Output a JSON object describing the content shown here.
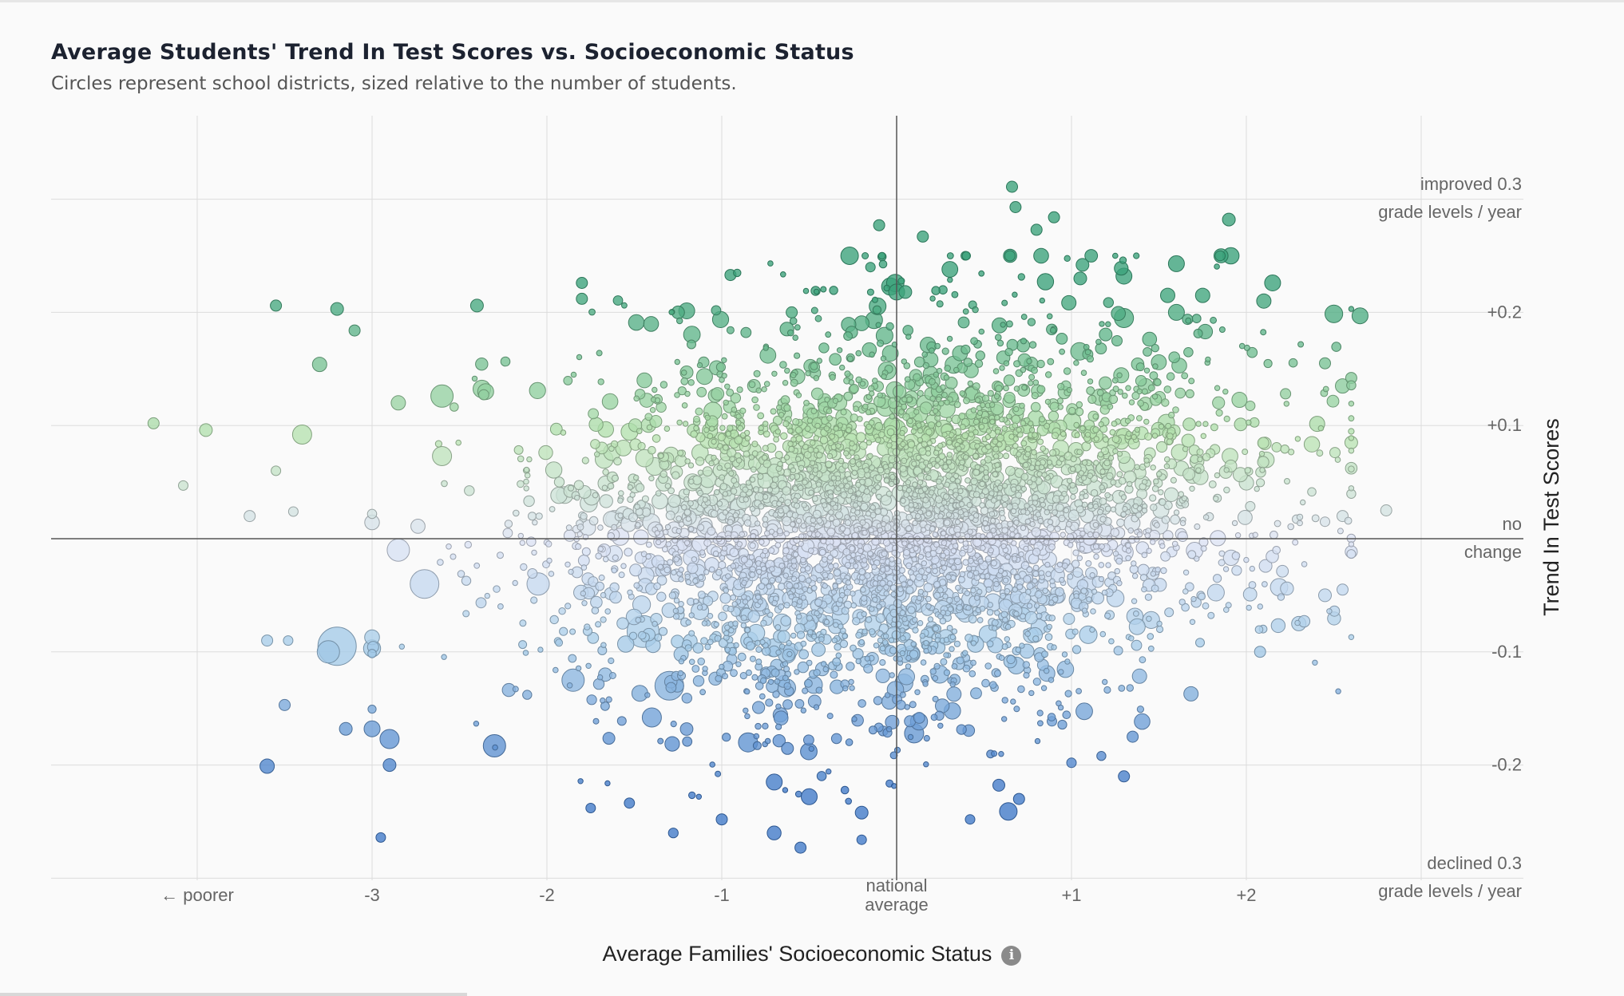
{
  "title": "Average Students' Trend In Test Scores vs. Socioeconomic Status",
  "subtitle": "Circles represent school districts, sized relative to the number of students.",
  "x_axis_label": "Average Families' Socioeconomic Status",
  "y_axis_label": "Trend In Test Scores",
  "info_icon": "info-icon",
  "colors": {
    "positive": "#3aa27a",
    "light_positive": "#b8e3b0",
    "neutral": "#dde3f4",
    "light_negative": "#a8cde9",
    "negative": "#3f79c8",
    "grid": "#dddddd",
    "axis": "#555555"
  },
  "chart_data": {
    "type": "scatter",
    "title": "Average Students' Trend In Test Scores vs. Socioeconomic Status",
    "subtitle": "Circles represent school districts, sized relative to the number of students.",
    "xlabel": "Average Families' Socioeconomic Status",
    "ylabel": "Trend In Test Scores",
    "xlim": [
      -4.0,
      3.0
    ],
    "ylim": [
      -0.3,
      0.3
    ],
    "grid": true,
    "x_ticks": [
      {
        "value": -4,
        "label": "← poorer"
      },
      {
        "value": -3,
        "label": "-3"
      },
      {
        "value": -2,
        "label": "-2"
      },
      {
        "value": -1,
        "label": "-1"
      },
      {
        "value": 0,
        "label": "national",
        "label2": "average"
      },
      {
        "value": 1,
        "label": "+1"
      },
      {
        "value": 2,
        "label": "+2"
      },
      {
        "value": 3,
        "label": ""
      }
    ],
    "y_ticks": [
      {
        "value": 0.3,
        "label": "improved 0.3",
        "label2": "grade levels / year"
      },
      {
        "value": 0.2,
        "label": "+0.2"
      },
      {
        "value": 0.1,
        "label": "+0.1"
      },
      {
        "value": 0.0,
        "label": "no",
        "label2": "change"
      },
      {
        "value": -0.1,
        "label": "-0.1"
      },
      {
        "value": -0.2,
        "label": "-0.2"
      },
      {
        "value": -0.3,
        "label": "declined 0.3",
        "label2": "grade levels / year"
      }
    ],
    "dense_cloud": {
      "x_mean": 0.05,
      "x_sd": 0.95,
      "y_mean": 0.02,
      "y_sd": 0.08,
      "count": 4200
    },
    "points": [
      {
        "x": 0.66,
        "y": 0.311,
        "size": 7
      },
      {
        "x": 0.68,
        "y": 0.293,
        "size": 7
      },
      {
        "x": -0.1,
        "y": 0.277,
        "size": 7
      },
      {
        "x": 0.9,
        "y": 0.284,
        "size": 7
      },
      {
        "x": 0.15,
        "y": 0.267,
        "size": 7
      },
      {
        "x": 0.8,
        "y": 0.273,
        "size": 7
      },
      {
        "x": 1.9,
        "y": 0.282,
        "size": 8
      },
      {
        "x": 1.6,
        "y": 0.243,
        "size": 10
      },
      {
        "x": 1.3,
        "y": 0.232,
        "size": 10
      },
      {
        "x": 1.05,
        "y": 0.23,
        "size": 8
      },
      {
        "x": -0.95,
        "y": 0.233,
        "size": 7
      },
      {
        "x": -1.8,
        "y": 0.226,
        "size": 7
      },
      {
        "x": -1.8,
        "y": 0.212,
        "size": 7
      },
      {
        "x": -3.55,
        "y": 0.206,
        "size": 7
      },
      {
        "x": -3.2,
        "y": 0.203,
        "size": 8
      },
      {
        "x": -2.4,
        "y": 0.206,
        "size": 8
      },
      {
        "x": -3.1,
        "y": 0.184,
        "size": 7
      },
      {
        "x": 2.65,
        "y": 0.197,
        "size": 10
      },
      {
        "x": 2.1,
        "y": 0.21,
        "size": 9
      },
      {
        "x": 2.15,
        "y": 0.226,
        "size": 10
      },
      {
        "x": -3.3,
        "y": 0.154,
        "size": 9
      },
      {
        "x": -2.6,
        "y": 0.126,
        "size": 14
      },
      {
        "x": -2.35,
        "y": 0.13,
        "size": 10
      },
      {
        "x": -2.85,
        "y": 0.12,
        "size": 9
      },
      {
        "x": -4.25,
        "y": 0.102,
        "size": 7
      },
      {
        "x": -3.95,
        "y": 0.096,
        "size": 8
      },
      {
        "x": -3.4,
        "y": 0.092,
        "size": 12
      },
      {
        "x": -2.6,
        "y": 0.073,
        "size": 12
      },
      {
        "x": -4.08,
        "y": 0.047,
        "size": 6
      },
      {
        "x": -3.55,
        "y": 0.06,
        "size": 6
      },
      {
        "x": -3.7,
        "y": 0.02,
        "size": 7
      },
      {
        "x": -3.45,
        "y": 0.024,
        "size": 6
      },
      {
        "x": -2.85,
        "y": -0.01,
        "size": 14
      },
      {
        "x": -2.7,
        "y": -0.04,
        "size": 18
      },
      {
        "x": -3.2,
        "y": -0.095,
        "size": 24
      },
      {
        "x": -3.25,
        "y": -0.1,
        "size": 14
      },
      {
        "x": -3.6,
        "y": -0.09,
        "size": 7
      },
      {
        "x": -3.48,
        "y": -0.09,
        "size": 6
      },
      {
        "x": -3.5,
        "y": -0.147,
        "size": 7
      },
      {
        "x": -3.6,
        "y": -0.201,
        "size": 9
      },
      {
        "x": -2.9,
        "y": -0.2,
        "size": 8
      },
      {
        "x": -3.15,
        "y": -0.168,
        "size": 8
      },
      {
        "x": -3.0,
        "y": -0.168,
        "size": 10
      },
      {
        "x": -2.9,
        "y": -0.177,
        "size": 12
      },
      {
        "x": -2.3,
        "y": -0.183,
        "size": 14
      },
      {
        "x": -2.95,
        "y": -0.264,
        "size": 6
      },
      {
        "x": -1.75,
        "y": -0.238,
        "size": 6
      },
      {
        "x": -1.0,
        "y": -0.248,
        "size": 7
      },
      {
        "x": -0.55,
        "y": -0.273,
        "size": 7
      },
      {
        "x": -0.2,
        "y": -0.266,
        "size": 6
      },
      {
        "x": -0.2,
        "y": -0.242,
        "size": 8
      },
      {
        "x": -0.5,
        "y": -0.228,
        "size": 10
      },
      {
        "x": -0.7,
        "y": -0.215,
        "size": 10
      },
      {
        "x": 0.7,
        "y": -0.23,
        "size": 7
      },
      {
        "x": 0.42,
        "y": -0.248,
        "size": 6
      },
      {
        "x": 1.0,
        "y": -0.198,
        "size": 6
      },
      {
        "x": 1.3,
        "y": -0.21,
        "size": 7
      },
      {
        "x": 1.35,
        "y": -0.175,
        "size": 7
      },
      {
        "x": 0.1,
        "y": -0.172,
        "size": 12
      },
      {
        "x": -0.85,
        "y": -0.18,
        "size": 12
      },
      {
        "x": -1.4,
        "y": -0.158,
        "size": 12
      },
      {
        "x": -1.3,
        "y": -0.13,
        "size": 18
      },
      {
        "x": -1.85,
        "y": -0.125,
        "size": 14
      },
      {
        "x": -1.45,
        "y": -0.082,
        "size": 20
      },
      {
        "x": -2.05,
        "y": -0.04,
        "size": 14
      },
      {
        "x": 2.3,
        "y": -0.075,
        "size": 9
      },
      {
        "x": 2.45,
        "y": -0.05,
        "size": 8
      },
      {
        "x": 2.55,
        "y": -0.045,
        "size": 7
      },
      {
        "x": 2.55,
        "y": 0.02,
        "size": 7
      },
      {
        "x": 2.45,
        "y": 0.015,
        "size": 6
      },
      {
        "x": 2.8,
        "y": 0.025,
        "size": 7
      },
      {
        "x": 2.6,
        "y": 0.085,
        "size": 8
      },
      {
        "x": 2.6,
        "y": 0.142,
        "size": 7
      },
      {
        "x": 2.55,
        "y": 0.135,
        "size": 9
      },
      {
        "x": 2.45,
        "y": 0.155,
        "size": 7
      },
      {
        "x": 1.75,
        "y": 0.215,
        "size": 9
      },
      {
        "x": 1.55,
        "y": 0.215,
        "size": 9
      },
      {
        "x": 1.3,
        "y": 0.195,
        "size": 12
      },
      {
        "x": 1.6,
        "y": 0.2,
        "size": 10
      },
      {
        "x": 0.0,
        "y": 0.218,
        "size": 10
      },
      {
        "x": 0.05,
        "y": 0.218,
        "size": 8
      },
      {
        "x": -0.6,
        "y": 0.2,
        "size": 7
      },
      {
        "x": -1.25,
        "y": 0.2,
        "size": 8
      },
      {
        "x": -0.15,
        "y": 0.24,
        "size": 6
      }
    ]
  }
}
